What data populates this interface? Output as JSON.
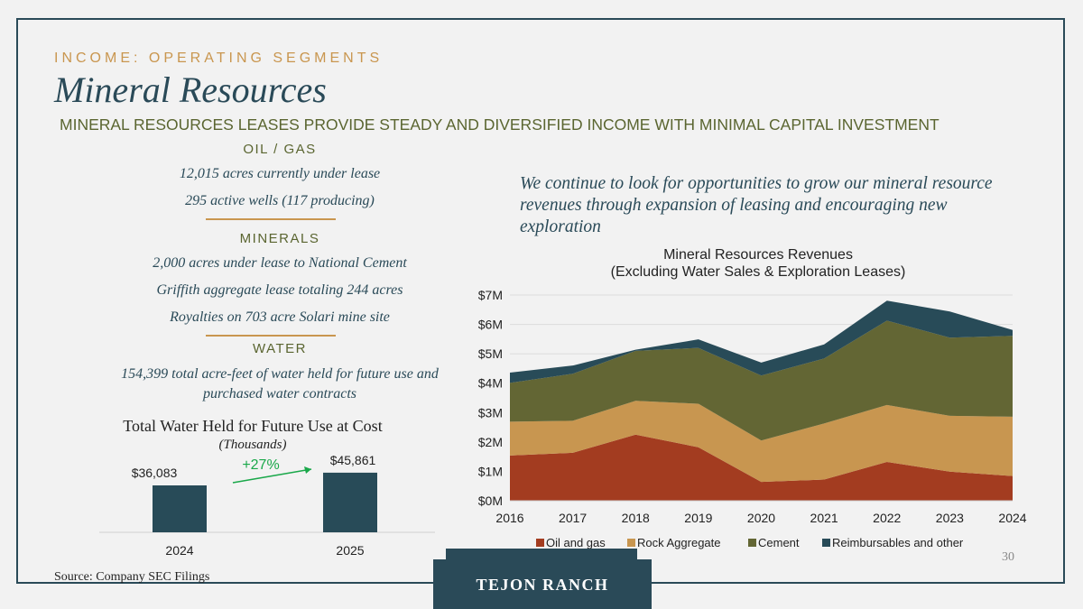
{
  "header": {
    "eyebrow": "INCOME: OPERATING SEGMENTS",
    "title": "Mineral Resources",
    "subtitle": "MINERAL RESOURCES LEASES PROVIDE STEADY AND DIVERSIFIED INCOME WITH MINIMAL CAPITAL INVESTMENT"
  },
  "oil_gas": {
    "heading": "OIL / GAS",
    "lines": [
      "12,015 acres currently under lease",
      "295 active wells (117 producing)"
    ]
  },
  "minerals": {
    "heading": "MINERALS",
    "lines": [
      "2,000 acres under lease to National Cement",
      "Griffith aggregate lease totaling 244 acres",
      "Royalties on 703 acre Solari mine site"
    ]
  },
  "water": {
    "heading": "WATER",
    "lines": [
      "154,399 total acre-feet of water held for future use and",
      "purchased water contracts"
    ]
  },
  "quote": "We continue to look for opportunities to grow our mineral resource revenues through expansion of leasing and encouraging new exploration",
  "footer": {
    "source": "Source: Company SEC Filings",
    "page": "30",
    "logo": "TEJON RANCH"
  },
  "colors": {
    "oil": "#a33c20",
    "rock": "#c89650",
    "cement": "#636634",
    "other": "#284b58",
    "bar": "#284b58",
    "growth": "#1aa84a"
  },
  "chart_data": [
    {
      "type": "area",
      "stacked": true,
      "title": "Mineral Resources Revenues",
      "subtitle": "(Excluding Water Sales & Exploration Leases)",
      "x": [
        "2016",
        "2017",
        "2018",
        "2019",
        "2020",
        "2021",
        "2022",
        "2023",
        "2024"
      ],
      "yticks": [
        "$0M",
        "$1M",
        "$2M",
        "$3M",
        "$4M",
        "$5M",
        "$6M",
        "$7M"
      ],
      "ylim": [
        0,
        7
      ],
      "legend_position": "bottom",
      "series": [
        {
          "name": "Oil and gas",
          "values": [
            1.54,
            1.63,
            2.25,
            1.82,
            0.64,
            0.72,
            1.32,
            0.99,
            0.84
          ]
        },
        {
          "name": "Rock Aggregate",
          "values": [
            1.15,
            1.09,
            1.15,
            1.48,
            1.41,
            1.91,
            1.94,
            1.9,
            2.02
          ]
        },
        {
          "name": "Cement",
          "values": [
            1.32,
            1.6,
            1.7,
            1.9,
            2.21,
            2.21,
            2.87,
            2.66,
            2.75
          ]
        },
        {
          "name": "Reimbursables and other",
          "values": [
            0.35,
            0.28,
            0.04,
            0.29,
            0.44,
            0.48,
            0.68,
            0.89,
            0.2
          ]
        }
      ]
    },
    {
      "type": "bar",
      "title": "Total Water Held for Future Use at Cost",
      "subtitle": "(Thousands)",
      "categories": [
        "2024",
        "2025"
      ],
      "values": [
        36083,
        45861
      ],
      "labels": [
        "$36,083",
        "$45,861"
      ],
      "annotation": "+27%"
    }
  ]
}
